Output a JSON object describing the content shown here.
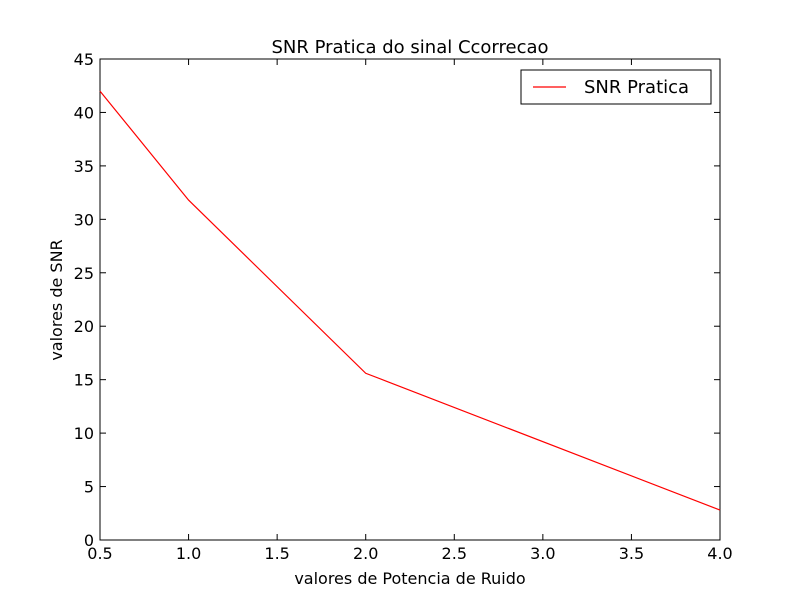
{
  "chart_data": {
    "type": "line",
    "title": "SNR Pratica do sinal Ccorrecao",
    "xlabel": "valores de Potencia de Ruido",
    "ylabel": "valores de SNR",
    "xlim": [
      0.5,
      4.0
    ],
    "ylim": [
      0,
      45
    ],
    "xticks": [
      "0.5",
      "1.0",
      "1.5",
      "2.0",
      "2.5",
      "3.0",
      "3.5",
      "4.0"
    ],
    "yticks": [
      "0",
      "5",
      "10",
      "15",
      "20",
      "25",
      "30",
      "35",
      "40",
      "45"
    ],
    "grid": false,
    "legend_position": "top-right",
    "series": [
      {
        "name": "SNR Pratica",
        "color": "#ff0000",
        "x": [
          0.5,
          1.0,
          2.0,
          4.0
        ],
        "y": [
          42.0,
          31.8,
          15.6,
          2.8
        ]
      }
    ]
  }
}
